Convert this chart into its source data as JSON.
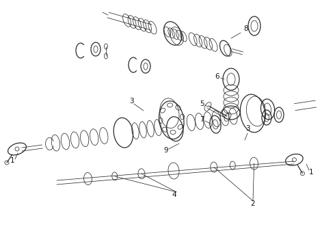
{
  "bg_color": "#ffffff",
  "line_color": "#2a2a2a",
  "label_color": "#111111",
  "figsize": [
    4.9,
    3.6
  ],
  "dpi": 100,
  "lw": 0.9,
  "lw_thin": 0.55,
  "lw_thick": 1.2
}
